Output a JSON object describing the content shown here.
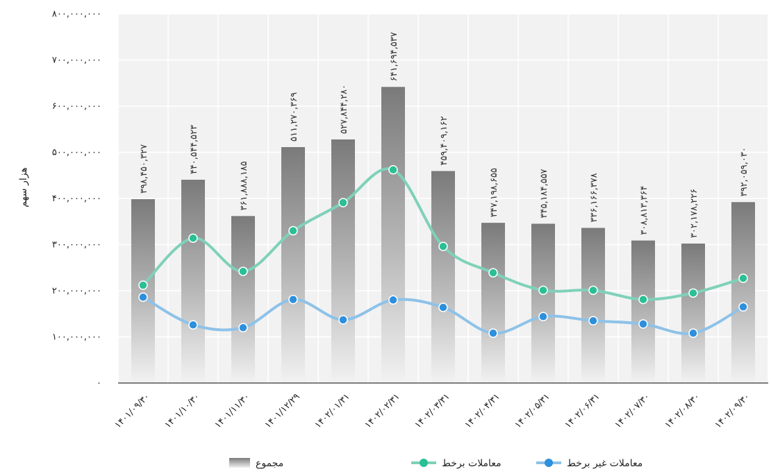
{
  "chart_data": {
    "type": "bar",
    "ylabel": "هزار سهم",
    "ylim": [
      0,
      800000000
    ],
    "y_ticks": [
      "۰",
      "۱۰۰,۰۰۰,۰۰۰",
      "۲۰۰,۰۰۰,۰۰۰",
      "۳۰۰,۰۰۰,۰۰۰",
      "۴۰۰,۰۰۰,۰۰۰",
      "۵۰۰,۰۰۰,۰۰۰",
      "۶۰۰,۰۰۰,۰۰۰",
      "۷۰۰,۰۰۰,۰۰۰",
      "۸۰۰,۰۰۰,۰۰۰"
    ],
    "y_tick_values": [
      0,
      100000000,
      200000000,
      300000000,
      400000000,
      500000000,
      600000000,
      700000000,
      800000000
    ],
    "categories": [
      "۱۴۰۱/۰۹/۳۰",
      "۱۴۰۱/۱۰/۳۰",
      "۱۴۰۱/۱۱/۳۰",
      "۱۴۰۱/۱۲/۲۹",
      "۱۴۰۲/۰۱/۳۱",
      "۱۴۰۲/۰۲/۳۱",
      "۱۴۰۲/۰۳/۳۱",
      "۱۴۰۲/۰۴/۳۱",
      "۱۴۰۲/۰۵/۳۱",
      "۱۴۰۲/۰۶/۳۱",
      "۱۴۰۲/۰۷/۳۰",
      "۱۴۰۲/۰۸/۳۰",
      "۱۴۰۲/۰۹/۳۰"
    ],
    "grid": true,
    "legend_position": "bottom",
    "series": [
      {
        "name": "مجموع",
        "kind": "bar",
        "values": [
          398450327,
          440544523,
          361888185,
          511270369,
          527844280,
          641694537,
          459409162,
          347198655,
          345184557,
          336166378,
          308813364,
          302178226,
          392059030
        ],
        "labels": [
          "۳۹۸,۴۵۰,۳۲۷",
          "۴۴۰,۵۴۴,۵۲۳",
          "۳۶۱,۸۸۸,۱۸۵",
          "۵۱۱,۲۷۰,۳۶۹",
          "۵۲۷,۸۴۴,۲۸۰",
          "۶۴۱,۶۹۴,۵۳۷",
          "۴۵۹,۴۰۹,۱۶۲",
          "۳۴۷,۱۹۸,۶۵۵",
          "۳۴۵,۱۸۴,۵۵۷",
          "۳۳۶,۱۶۶,۳۷۸",
          "۳۰۸,۸۱۳,۳۶۴",
          "۳۰۲,۱۷۸,۲۲۶",
          "۳۹۲,۰۵۹,۰۳۰"
        ]
      },
      {
        "name": "معاملات برخط",
        "kind": "line",
        "color": "#7fd1b9",
        "marker_color": "#2bbf95",
        "values": [
          212000000,
          314000000,
          242000000,
          330000000,
          391000000,
          462000000,
          296000000,
          239000000,
          201000000,
          201000000,
          181000000,
          195000000,
          227000000
        ]
      },
      {
        "name": "معاملات غیر برخط",
        "kind": "line",
        "color": "#8ec2e8",
        "marker_color": "#2e8fdc",
        "values": [
          186000000,
          126000000,
          120000000,
          181000000,
          137000000,
          180000000,
          164000000,
          108000000,
          144000000,
          135000000,
          128000000,
          108000000,
          165000000
        ]
      }
    ]
  }
}
